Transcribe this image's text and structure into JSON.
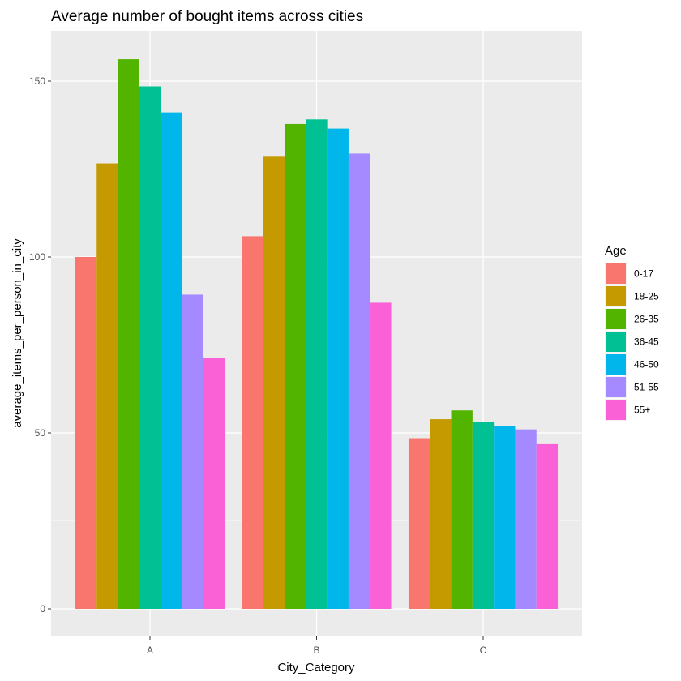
{
  "chart_data": {
    "type": "bar",
    "title": "Average number of bought items across cities",
    "xlabel": "City_Category",
    "ylabel": "average_items_per_person_in_city",
    "categories": [
      "A",
      "B",
      "C"
    ],
    "ylim": [
      0,
      160
    ],
    "yticks": [
      0,
      50,
      100,
      150
    ],
    "grid": true,
    "legend": {
      "title": "Age",
      "position": "right"
    },
    "series": [
      {
        "name": "0-17",
        "color": "#F8766D",
        "values": [
          100.0,
          105.9,
          48.5
        ]
      },
      {
        "name": "18-25",
        "color": "#C49A00",
        "values": [
          126.6,
          128.5,
          53.9
        ]
      },
      {
        "name": "26-35",
        "color": "#53B400",
        "values": [
          156.2,
          137.8,
          56.4
        ]
      },
      {
        "name": "36-45",
        "color": "#00C094",
        "values": [
          148.5,
          139.1,
          53.1
        ]
      },
      {
        "name": "46-50",
        "color": "#00B6EB",
        "values": [
          141.1,
          136.5,
          52.0
        ]
      },
      {
        "name": "51-55",
        "color": "#A58AFF",
        "values": [
          89.3,
          129.4,
          51.0
        ]
      },
      {
        "name": "55+",
        "color": "#FB61D7",
        "values": [
          71.3,
          87.0,
          46.8
        ]
      }
    ]
  }
}
